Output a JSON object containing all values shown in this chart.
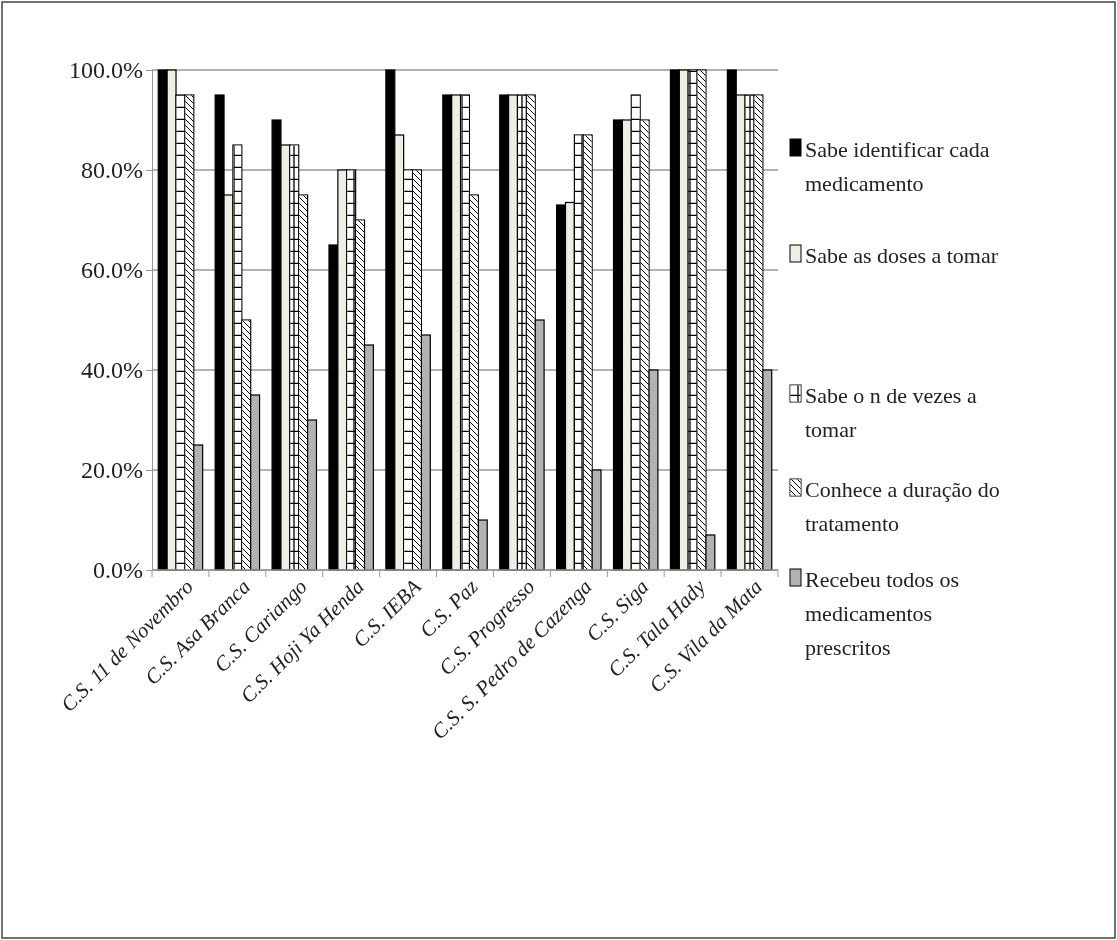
{
  "chart_data": {
    "type": "bar",
    "categories": [
      "C.S. 11 de Novembro",
      "C.S. Asa Branca",
      "C.S. Cariango",
      "C.S. Hoji Ya Henda",
      "C.S. IEBA",
      "C.S.  Paz",
      "C.S. Progresso",
      "C.S. S. Pedro de Cazenga",
      "C.S. Siga",
      "C.S. Tala Hady",
      "C.S. Vila da Mata"
    ],
    "series": [
      {
        "name": "Sabe identificar cada medicamento",
        "color": "#000000",
        "values": [
          100,
          95,
          90,
          65,
          100,
          95,
          95,
          73,
          90,
          100,
          100
        ]
      },
      {
        "name": "Sabe as doses a tomar",
        "color": "#eeeee4",
        "values": [
          100,
          75,
          85,
          80,
          87,
          95,
          95,
          73.5,
          90,
          100,
          95
        ]
      },
      {
        "name": "Sabe o n de vezes a tomar",
        "color": "#ffffff",
        "values": [
          95,
          85,
          85,
          80,
          80,
          95,
          95,
          87,
          95,
          100,
          95
        ]
      },
      {
        "name": "Conhece a duração do tratamento",
        "color": "#ffffff",
        "values": [
          95,
          50,
          75,
          70,
          80,
          75,
          95,
          87,
          90,
          100,
          95
        ]
      },
      {
        "name": "Recebeu todos os medicamentos prescritos",
        "color": "#b2b2b2",
        "values": [
          25,
          35,
          30,
          45,
          47,
          10,
          50,
          20,
          40,
          7,
          40
        ]
      }
    ],
    "ylim": [
      0,
      100
    ],
    "yticks": [
      {
        "value": 0,
        "label": "0.0%"
      },
      {
        "value": 20,
        "label": "20.0%"
      },
      {
        "value": 40,
        "label": "40.0%"
      },
      {
        "value": 60,
        "label": "60.0%"
      },
      {
        "value": 80,
        "label": "80.0%"
      },
      {
        "value": 100,
        "label": "100.0%"
      }
    ],
    "grid": "y",
    "legend": "right"
  }
}
